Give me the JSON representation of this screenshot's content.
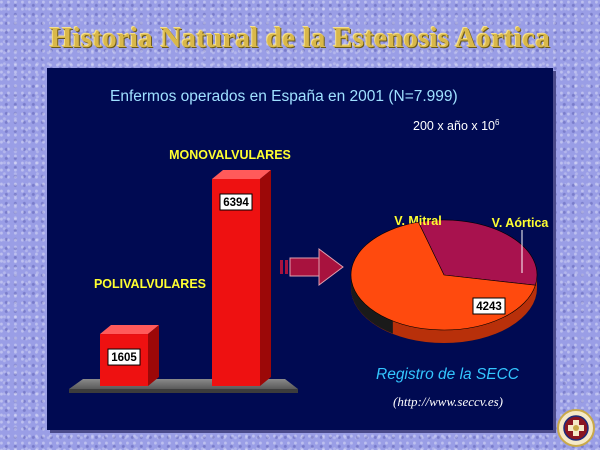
{
  "slide": {
    "title": "Historia Natural de la Estenosis Aórtica"
  },
  "chart_data": [
    {
      "type": "bar",
      "title": "Enfermos operados en España en 2001 (N=7.999)",
      "unit_label": "200 x año x 10",
      "unit_exp": "6",
      "categories": [
        "POLIVALVULARES",
        "MONOVALVULARES"
      ],
      "values": [
        1605,
        6394
      ],
      "ylim": [
        0,
        6394
      ],
      "grid": false,
      "color": "#ee1111"
    },
    {
      "type": "pie",
      "categories": [
        "V. Mitral",
        "V. Aórtica"
      ],
      "values": [
        2035,
        4243
      ],
      "colors": [
        "#a8124e",
        "#ff4a0e"
      ]
    }
  ],
  "source": {
    "label": "Registro de la SECC",
    "url": "(http://www.seccv.es)"
  },
  "colors": {
    "panel_bg": "#000a52",
    "title_gold": "#d9b84a",
    "subtitle": "#9fe0ff",
    "category_yellow": "#ffff30",
    "arrow": "#a8123e"
  },
  "icons": {
    "logo": "society-seal-icon",
    "arrow": "right-arrow-icon"
  }
}
